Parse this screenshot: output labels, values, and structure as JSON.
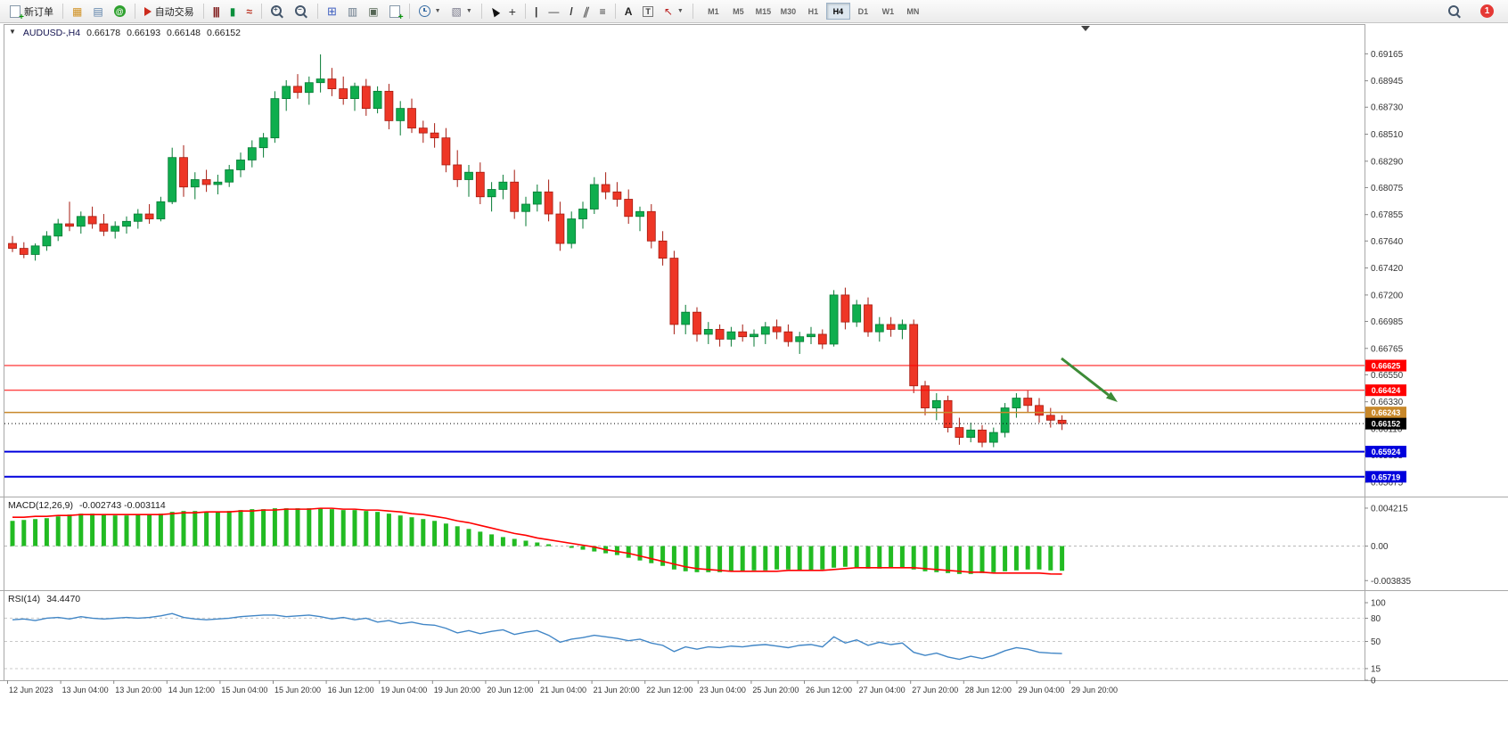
{
  "toolbar": {
    "new_order_label": "新订单",
    "autotrading_label": "自动交易",
    "timeframes": [
      "M1",
      "M5",
      "M15",
      "M30",
      "H1",
      "H4",
      "D1",
      "W1",
      "MN"
    ],
    "active_timeframe": "H4",
    "notification_badge": "1",
    "icons": [
      "new-order-icon",
      "toolbox-icon",
      "print-icon",
      "community-icon",
      "autotrading-icon",
      "bar-chart-icon",
      "candlestick-icon",
      "line-chart-icon",
      "zoom-in-icon",
      "zoom-out-icon",
      "data-window-icon",
      "navigator-icon",
      "terminal-icon",
      "new-chart-icon",
      "periods-icon",
      "template-icon",
      "cursor-icon",
      "crosshair-icon",
      "vertical-line-icon",
      "horizontal-line-icon",
      "trendline-icon",
      "channel-icon",
      "fibonacci-icon",
      "text-icon",
      "label-icon",
      "arrow-tools-icon",
      "search-icon"
    ]
  },
  "chart_data": [
    {
      "type": "candlestick",
      "symbol": "AUDUSD-",
      "period": "H4",
      "header": {
        "symbol_period": "AUDUSD-,H4",
        "open": "0.66178",
        "high": "0.66193",
        "low": "0.66148",
        "close": "0.66152"
      },
      "y_axis_labels": [
        "0.69165",
        "0.68945",
        "0.68730",
        "0.68510",
        "0.68290",
        "0.68075",
        "0.67855",
        "0.67640",
        "0.67420",
        "0.67200",
        "0.66985",
        "0.66765",
        "0.66550",
        "0.66330",
        "0.66110",
        "0.65895",
        "0.65675"
      ],
      "price_range": [
        0.65565,
        0.694
      ],
      "x_axis_labels": [
        "12 Jun 2023",
        "13 Jun 04:00",
        "13 Jun 20:00",
        "14 Jun 12:00",
        "15 Jun 04:00",
        "15 Jun 20:00",
        "16 Jun 12:00",
        "19 Jun 04:00",
        "19 Jun 20:00",
        "20 Jun 12:00",
        "21 Jun 04:00",
        "21 Jun 20:00",
        "22 Jun 12:00",
        "23 Jun 04:00",
        "25 Jun 20:00",
        "26 Jun 12:00",
        "27 Jun 04:00",
        "27 Jun 20:00",
        "28 Jun 12:00",
        "29 Jun 04:00",
        "29 Jun 20:00"
      ],
      "up_color": "#0fae4e",
      "up_stroke": "#067a33",
      "down_color": "#ee3626",
      "down_stroke": "#a61b10",
      "hlines": [
        {
          "value": 0.66625,
          "label": "0.66625",
          "color": "#ff0000",
          "width": 1
        },
        {
          "value": 0.66424,
          "label": "0.66424",
          "color": "#ff0000",
          "width": 1
        },
        {
          "value": 0.66243,
          "label": "0.66243",
          "color": "#c8882a",
          "width": 1.5
        },
        {
          "value": 0.65924,
          "label": "0.65924",
          "color": "#0000dd",
          "width": 2
        },
        {
          "value": 0.65719,
          "label": "0.65719",
          "color": "#0000dd",
          "width": 2
        }
      ],
      "bid": {
        "value": 0.66152,
        "label": "0.66152",
        "color": "#000000"
      },
      "arrow_annotation": {
        "from": [
          1191,
          402
        ],
        "to": [
          1254,
          451
        ],
        "color": "#3d8b37",
        "width": 3
      },
      "candles": [
        [
          0.6762,
          0.6768,
          0.6755,
          0.6758
        ],
        [
          0.6758,
          0.6763,
          0.675,
          0.6753
        ],
        [
          0.6753,
          0.6762,
          0.6748,
          0.676
        ],
        [
          0.676,
          0.6772,
          0.6756,
          0.6768
        ],
        [
          0.6768,
          0.6782,
          0.6764,
          0.6778
        ],
        [
          0.6778,
          0.6796,
          0.6772,
          0.6776
        ],
        [
          0.6776,
          0.6788,
          0.677,
          0.6784
        ],
        [
          0.6784,
          0.6792,
          0.6774,
          0.6778
        ],
        [
          0.6778,
          0.6786,
          0.6768,
          0.6772
        ],
        [
          0.6772,
          0.678,
          0.6766,
          0.6776
        ],
        [
          0.6776,
          0.6784,
          0.677,
          0.678
        ],
        [
          0.678,
          0.679,
          0.6774,
          0.6786
        ],
        [
          0.6786,
          0.6794,
          0.6778,
          0.6782
        ],
        [
          0.6782,
          0.68,
          0.678,
          0.6796
        ],
        [
          0.6796,
          0.684,
          0.6794,
          0.6832
        ],
        [
          0.6832,
          0.6842,
          0.68,
          0.6808
        ],
        [
          0.6808,
          0.682,
          0.6798,
          0.6814
        ],
        [
          0.6814,
          0.6822,
          0.6804,
          0.681
        ],
        [
          0.681,
          0.6818,
          0.6802,
          0.6812
        ],
        [
          0.6812,
          0.6826,
          0.6808,
          0.6822
        ],
        [
          0.6822,
          0.6836,
          0.6816,
          0.683
        ],
        [
          0.683,
          0.6846,
          0.6824,
          0.684
        ],
        [
          0.684,
          0.6852,
          0.6832,
          0.6848
        ],
        [
          0.6848,
          0.6886,
          0.6844,
          0.688
        ],
        [
          0.688,
          0.6895,
          0.687,
          0.689
        ],
        [
          0.689,
          0.69,
          0.688,
          0.6885
        ],
        [
          0.6885,
          0.6898,
          0.6875,
          0.6893
        ],
        [
          0.6893,
          0.6916,
          0.6885,
          0.6896
        ],
        [
          0.6896,
          0.6905,
          0.6882,
          0.6888
        ],
        [
          0.6888,
          0.6898,
          0.6875,
          0.688
        ],
        [
          0.688,
          0.6893,
          0.687,
          0.689
        ],
        [
          0.689,
          0.6896,
          0.6866,
          0.6872
        ],
        [
          0.6872,
          0.689,
          0.6868,
          0.6886
        ],
        [
          0.6886,
          0.6892,
          0.6855,
          0.6862
        ],
        [
          0.6862,
          0.6878,
          0.685,
          0.6872
        ],
        [
          0.6872,
          0.688,
          0.6852,
          0.6856
        ],
        [
          0.6856,
          0.6862,
          0.6844,
          0.6852
        ],
        [
          0.6852,
          0.686,
          0.684,
          0.6848
        ],
        [
          0.6848,
          0.6856,
          0.682,
          0.6826
        ],
        [
          0.6826,
          0.6838,
          0.6808,
          0.6814
        ],
        [
          0.6814,
          0.6826,
          0.68,
          0.682
        ],
        [
          0.682,
          0.6828,
          0.6794,
          0.68
        ],
        [
          0.68,
          0.6812,
          0.6788,
          0.6806
        ],
        [
          0.6806,
          0.6818,
          0.6798,
          0.6812
        ],
        [
          0.6812,
          0.6822,
          0.6782,
          0.6788
        ],
        [
          0.6788,
          0.68,
          0.6776,
          0.6794
        ],
        [
          0.6794,
          0.681,
          0.6788,
          0.6804
        ],
        [
          0.6804,
          0.6814,
          0.678,
          0.6786
        ],
        [
          0.6786,
          0.6796,
          0.6756,
          0.6762
        ],
        [
          0.6762,
          0.6788,
          0.6758,
          0.6782
        ],
        [
          0.6782,
          0.6796,
          0.6774,
          0.679
        ],
        [
          0.679,
          0.6816,
          0.6786,
          0.681
        ],
        [
          0.681,
          0.682,
          0.6798,
          0.6804
        ],
        [
          0.6804,
          0.6812,
          0.6792,
          0.6798
        ],
        [
          0.6798,
          0.6806,
          0.6778,
          0.6784
        ],
        [
          0.6784,
          0.6792,
          0.6772,
          0.6788
        ],
        [
          0.6788,
          0.6794,
          0.6758,
          0.6764
        ],
        [
          0.6764,
          0.6772,
          0.6744,
          0.675
        ],
        [
          0.675,
          0.6756,
          0.6688,
          0.6696
        ],
        [
          0.6696,
          0.6712,
          0.6688,
          0.6706
        ],
        [
          0.6706,
          0.671,
          0.6682,
          0.6688
        ],
        [
          0.6688,
          0.6698,
          0.668,
          0.6692
        ],
        [
          0.6692,
          0.6696,
          0.6678,
          0.6684
        ],
        [
          0.6684,
          0.6694,
          0.6678,
          0.669
        ],
        [
          0.669,
          0.6696,
          0.6682,
          0.6686
        ],
        [
          0.6686,
          0.6692,
          0.6678,
          0.6688
        ],
        [
          0.6688,
          0.6698,
          0.668,
          0.6694
        ],
        [
          0.6694,
          0.67,
          0.6684,
          0.669
        ],
        [
          0.669,
          0.6696,
          0.6678,
          0.6682
        ],
        [
          0.6682,
          0.669,
          0.6672,
          0.6686
        ],
        [
          0.6686,
          0.6694,
          0.668,
          0.6688
        ],
        [
          0.6688,
          0.6692,
          0.6676,
          0.668
        ],
        [
          0.668,
          0.6724,
          0.6678,
          0.672
        ],
        [
          0.672,
          0.6726,
          0.6692,
          0.6698
        ],
        [
          0.6698,
          0.6716,
          0.6694,
          0.6712
        ],
        [
          0.6712,
          0.6718,
          0.6686,
          0.669
        ],
        [
          0.669,
          0.6702,
          0.6682,
          0.6696
        ],
        [
          0.6696,
          0.6702,
          0.6686,
          0.6692
        ],
        [
          0.6692,
          0.67,
          0.6684,
          0.6696
        ],
        [
          0.6696,
          0.67,
          0.664,
          0.6646
        ],
        [
          0.6646,
          0.665,
          0.6622,
          0.6628
        ],
        [
          0.6628,
          0.664,
          0.6618,
          0.6634
        ],
        [
          0.6634,
          0.6638,
          0.6608,
          0.6612
        ],
        [
          0.6612,
          0.662,
          0.6598,
          0.6604
        ],
        [
          0.6604,
          0.6616,
          0.66,
          0.661
        ],
        [
          0.661,
          0.6614,
          0.6596,
          0.66
        ],
        [
          0.66,
          0.6612,
          0.6596,
          0.6608
        ],
        [
          0.6608,
          0.6632,
          0.6604,
          0.6628
        ],
        [
          0.6628,
          0.664,
          0.662,
          0.6636
        ],
        [
          0.6636,
          0.6642,
          0.6624,
          0.663
        ],
        [
          0.663,
          0.6636,
          0.6616,
          0.6622
        ],
        [
          0.6622,
          0.6628,
          0.6612,
          0.6618
        ],
        [
          0.6618,
          0.6622,
          0.661,
          0.66152
        ]
      ]
    },
    {
      "type": "bar",
      "label": "MACD(12,26,9)",
      "values_text": "-0.002743 -0.003114",
      "y_axis_labels": [
        "0.004215",
        "0.00",
        "-0.003835"
      ],
      "y_range": [
        -0.0048,
        0.0054
      ],
      "histogram_color": "#22bb22",
      "signal_color": "#ff0000",
      "histogram": [
        0.0028,
        0.0029,
        0.003,
        0.0031,
        0.0033,
        0.0035,
        0.0036,
        0.0036,
        0.0035,
        0.0034,
        0.0034,
        0.0035,
        0.0035,
        0.0036,
        0.0038,
        0.0039,
        0.0039,
        0.0038,
        0.0038,
        0.0039,
        0.004,
        0.0041,
        0.0041,
        0.0042,
        0.0042,
        0.0042,
        0.0042,
        0.0042,
        0.0041,
        0.004,
        0.004,
        0.0039,
        0.0038,
        0.0036,
        0.0034,
        0.0032,
        0.003,
        0.0028,
        0.0025,
        0.0022,
        0.0019,
        0.0016,
        0.0013,
        0.001,
        0.0008,
        0.0006,
        0.0004,
        0.0002,
        0.0,
        -0.0002,
        -0.0004,
        -0.0006,
        -0.0008,
        -0.001,
        -0.0013,
        -0.0016,
        -0.0019,
        -0.0022,
        -0.0026,
        -0.0028,
        -0.0029,
        -0.0029,
        -0.0029,
        -0.0028,
        -0.0028,
        -0.0027,
        -0.0027,
        -0.0026,
        -0.0026,
        -0.0027,
        -0.0027,
        -0.0026,
        -0.0024,
        -0.0023,
        -0.0024,
        -0.0025,
        -0.0025,
        -0.0024,
        -0.0024,
        -0.0026,
        -0.0028,
        -0.0029,
        -0.003,
        -0.0031,
        -0.0031,
        -0.003,
        -0.0029,
        -0.0028,
        -0.0027,
        -0.0026,
        -0.0026,
        -0.0027,
        -0.002743
      ],
      "signal": [
        0.0032,
        0.0032,
        0.0033,
        0.0033,
        0.0034,
        0.0034,
        0.0035,
        0.0035,
        0.0035,
        0.0035,
        0.0035,
        0.0035,
        0.0035,
        0.0035,
        0.0036,
        0.0037,
        0.0037,
        0.0038,
        0.0038,
        0.0038,
        0.0039,
        0.0039,
        0.004,
        0.004,
        0.0041,
        0.0041,
        0.0041,
        0.0042,
        0.0042,
        0.0041,
        0.0041,
        0.004,
        0.004,
        0.0039,
        0.0038,
        0.0036,
        0.0035,
        0.0033,
        0.0031,
        0.0028,
        0.0026,
        0.0023,
        0.002,
        0.0017,
        0.0014,
        0.0012,
        0.0009,
        0.0007,
        0.0005,
        0.0003,
        0.0001,
        -0.0001,
        -0.0004,
        -0.0006,
        -0.0008,
        -0.0011,
        -0.0014,
        -0.0017,
        -0.002,
        -0.0023,
        -0.0025,
        -0.0026,
        -0.0027,
        -0.0028,
        -0.0028,
        -0.0028,
        -0.0028,
        -0.0028,
        -0.0027,
        -0.0027,
        -0.0027,
        -0.0027,
        -0.0026,
        -0.0025,
        -0.0024,
        -0.0024,
        -0.0024,
        -0.0024,
        -0.0024,
        -0.0024,
        -0.0025,
        -0.0026,
        -0.0027,
        -0.0028,
        -0.0029,
        -0.0029,
        -0.003,
        -0.003,
        -0.003,
        -0.003,
        -0.003,
        -0.0031,
        -0.003114
      ]
    },
    {
      "type": "line",
      "label": "RSI(14)",
      "values_text": "34.4470",
      "levels": [
        80,
        50,
        15
      ],
      "y_axis_labels": [
        "100",
        "80",
        "50",
        "15",
        "0"
      ],
      "y_range": [
        0,
        115
      ],
      "line_color": "#4186c6",
      "values": [
        78,
        79,
        77,
        80,
        81,
        79,
        82,
        80,
        79,
        80,
        81,
        80,
        81,
        83,
        86,
        81,
        79,
        78,
        79,
        80,
        82,
        83,
        84,
        84,
        82,
        83,
        84,
        82,
        79,
        81,
        78,
        80,
        75,
        77,
        73,
        75,
        72,
        71,
        67,
        61,
        64,
        60,
        63,
        65,
        59,
        62,
        64,
        58,
        49,
        53,
        55,
        58,
        56,
        54,
        51,
        53,
        48,
        45,
        37,
        43,
        40,
        43,
        42,
        44,
        43,
        45,
        46,
        44,
        42,
        45,
        46,
        43,
        56,
        48,
        52,
        45,
        49,
        46,
        48,
        36,
        32,
        35,
        30,
        27,
        31,
        28,
        32,
        38,
        42,
        40,
        36,
        35,
        34.447
      ]
    }
  ]
}
